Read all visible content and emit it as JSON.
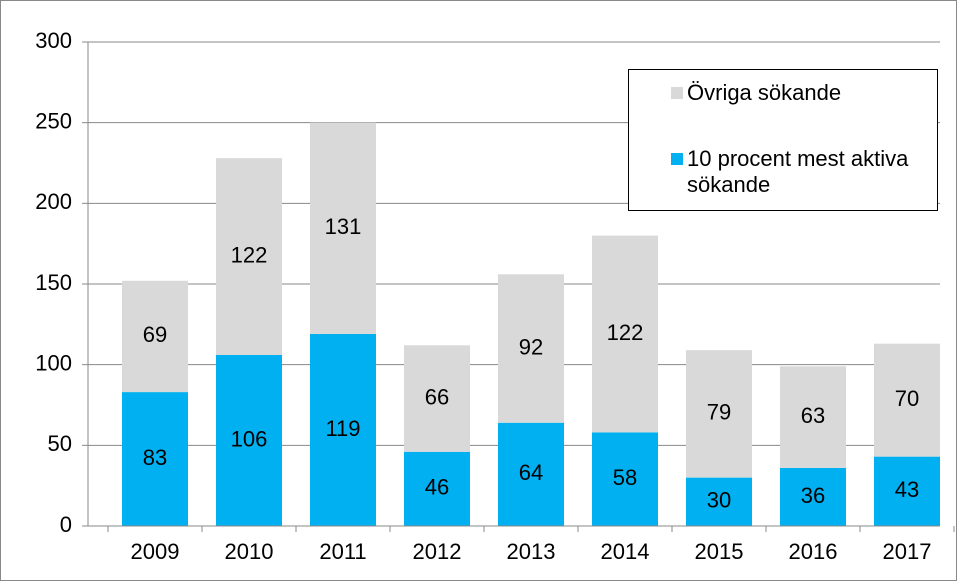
{
  "chart_data": {
    "type": "stacked_bar",
    "categories": [
      "2009",
      "2010",
      "2011",
      "2012",
      "2013",
      "2014",
      "2015",
      "2016",
      "2017"
    ],
    "series": [
      {
        "name": "10 procent mest aktiva sökande",
        "color": "#00b0f0",
        "values": [
          83,
          106,
          119,
          46,
          64,
          58,
          30,
          36,
          43
        ]
      },
      {
        "name": "Övriga sökande",
        "color": "#d9d9d9",
        "values": [
          69,
          122,
          131,
          66,
          92,
          122,
          79,
          63,
          70
        ]
      }
    ],
    "ylim": [
      0,
      300
    ],
    "yticks": [
      0,
      50,
      100,
      150,
      200,
      250,
      300
    ],
    "grid": true,
    "legend": "upper right"
  }
}
